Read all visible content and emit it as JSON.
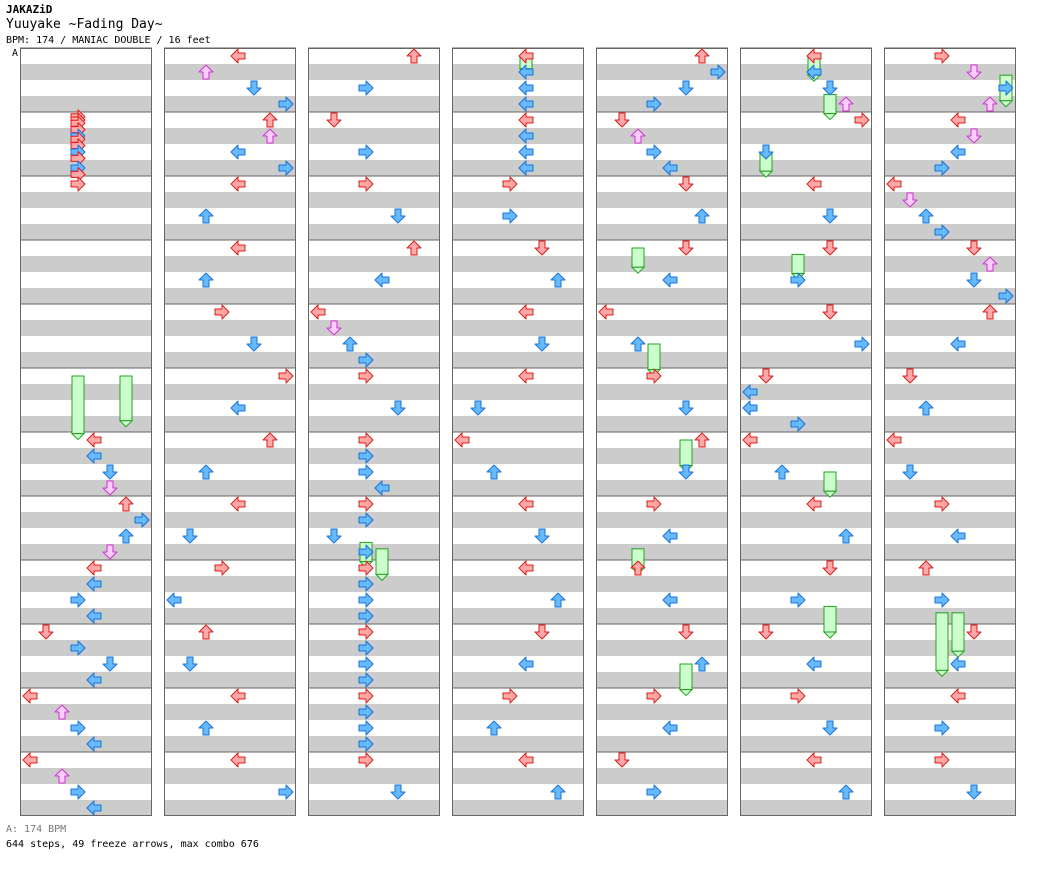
{
  "header": {
    "artist": "JAKAZiD",
    "title": "Yuuyake ~Fading Day~",
    "info": "BPM: 174 / MANIAC DOUBLE / 16 feet",
    "section_marker": "A"
  },
  "footer": {
    "bpm_line": "A: 174 BPM",
    "stats": "644 steps, 49 freeze arrows, max combo 676"
  },
  "colors": {
    "red_fill": "#ffaaaa",
    "red_stroke": "#e01818",
    "blue_fill": "#66bbff",
    "blue_stroke": "#1870d8",
    "pink_fill": "#ffccff",
    "pink_stroke": "#cc33cc",
    "freeze_fill": "#ccffcc",
    "freeze_stroke": "#20a020",
    "stripe": "#cccccc",
    "grid": "#666666"
  },
  "chart_data": {
    "type": "step-chart",
    "mode": "MANIAC DOUBLE",
    "bpm": 174,
    "panels": 16,
    "columns": 7,
    "measures_per_column": 12,
    "lanes": [
      "P1-left",
      "P1-down",
      "P1-up",
      "P1-right",
      "P2-left",
      "P2-down",
      "P2-up",
      "P2-right"
    ],
    "notes": [
      [
        [
          0,
          0.95,
          3
        ],
        [
          0,
          1.0,
          3
        ],
        [
          0,
          1.05,
          3
        ],
        [
          0,
          1.15,
          3
        ],
        [
          0,
          1.25,
          3
        ],
        [
          0,
          1.3,
          3
        ],
        [
          0,
          1.4,
          3
        ],
        [
          0,
          1.5,
          3
        ],
        [
          0,
          1.6,
          3
        ],
        [
          0,
          1.75,
          3
        ],
        [
          0,
          1.85,
          3
        ],
        [
          0,
          2.0,
          3
        ],
        [
          0,
          6.0,
          4
        ],
        [
          0,
          6.25,
          4
        ],
        [
          0,
          6.5,
          5
        ],
        [
          0,
          6.75,
          5
        ],
        [
          0,
          7.0,
          6
        ],
        [
          0,
          7.25,
          7
        ],
        [
          0,
          7.5,
          6
        ],
        [
          0,
          7.75,
          5
        ],
        [
          0,
          8.0,
          4
        ],
        [
          0,
          8.25,
          4
        ],
        [
          0,
          8.5,
          3
        ],
        [
          0,
          8.75,
          4
        ],
        [
          0,
          9.0,
          1
        ],
        [
          0,
          9.25,
          3
        ],
        [
          0,
          9.5,
          5
        ],
        [
          0,
          9.75,
          4
        ],
        [
          0,
          10.0,
          0
        ],
        [
          0,
          10.25,
          2
        ],
        [
          0,
          10.5,
          3
        ],
        [
          0,
          10.75,
          4
        ],
        [
          0,
          11.0,
          0
        ],
        [
          0,
          11.25,
          2
        ],
        [
          0,
          11.5,
          3
        ],
        [
          0,
          11.75,
          4
        ]
      ],
      [
        [
          1,
          0.0,
          4
        ],
        [
          1,
          0.25,
          2
        ],
        [
          1,
          0.5,
          5
        ],
        [
          1,
          0.75,
          7
        ],
        [
          1,
          1.0,
          6
        ],
        [
          1,
          1.25,
          6
        ],
        [
          1,
          1.5,
          4
        ],
        [
          1,
          1.75,
          7
        ],
        [
          1,
          2.0,
          4
        ],
        [
          1,
          2.5,
          2
        ],
        [
          1,
          3.0,
          4
        ],
        [
          1,
          3.5,
          2
        ],
        [
          1,
          4.0,
          3
        ],
        [
          1,
          4.5,
          5
        ],
        [
          1,
          5.0,
          7
        ],
        [
          1,
          5.5,
          4
        ],
        [
          1,
          6.0,
          6
        ],
        [
          1,
          6.5,
          2
        ],
        [
          1,
          7.0,
          4
        ],
        [
          1,
          7.5,
          1
        ],
        [
          1,
          8.0,
          3
        ],
        [
          1,
          8.5,
          0
        ],
        [
          1,
          9.0,
          2
        ],
        [
          1,
          9.5,
          1
        ],
        [
          1,
          10.0,
          4
        ],
        [
          1,
          10.5,
          2
        ],
        [
          1,
          11.0,
          4
        ],
        [
          1,
          11.5,
          7
        ]
      ],
      [
        [
          2,
          0.0,
          6
        ],
        [
          2,
          0.5,
          3
        ],
        [
          2,
          1.0,
          1
        ],
        [
          2,
          1.5,
          3
        ],
        [
          2,
          2.0,
          3
        ],
        [
          2,
          2.5,
          5
        ],
        [
          2,
          3.0,
          6
        ],
        [
          2,
          3.5,
          4
        ],
        [
          2,
          4.0,
          0
        ],
        [
          2,
          4.25,
          1
        ],
        [
          2,
          4.5,
          2
        ],
        [
          2,
          4.75,
          3
        ],
        [
          2,
          5.0,
          3
        ],
        [
          2,
          5.5,
          5
        ],
        [
          2,
          6.0,
          3
        ],
        [
          2,
          6.25,
          3
        ],
        [
          2,
          6.5,
          3
        ],
        [
          2,
          6.75,
          4
        ],
        [
          2,
          7.0,
          3
        ],
        [
          2,
          7.25,
          3
        ],
        [
          2,
          7.5,
          1
        ],
        [
          2,
          7.75,
          3
        ],
        [
          2,
          8.0,
          3
        ],
        [
          2,
          8.25,
          3
        ],
        [
          2,
          8.5,
          3
        ],
        [
          2,
          8.75,
          3
        ],
        [
          2,
          9.0,
          3
        ],
        [
          2,
          9.25,
          3
        ],
        [
          2,
          9.5,
          3
        ],
        [
          2,
          9.75,
          3
        ],
        [
          2,
          10.0,
          3
        ],
        [
          2,
          10.25,
          3
        ],
        [
          2,
          10.5,
          3
        ],
        [
          2,
          10.75,
          3
        ],
        [
          2,
          11.0,
          3
        ],
        [
          2,
          11.5,
          5
        ]
      ],
      [
        [
          3,
          0.0,
          4
        ],
        [
          3,
          0.25,
          4
        ],
        [
          3,
          0.5,
          4
        ],
        [
          3,
          0.75,
          4
        ],
        [
          3,
          1.0,
          4
        ],
        [
          3,
          1.25,
          4
        ],
        [
          3,
          1.5,
          4
        ],
        [
          3,
          1.75,
          4
        ],
        [
          3,
          2.0,
          3
        ],
        [
          3,
          2.5,
          3
        ],
        [
          3,
          3.0,
          5
        ],
        [
          3,
          3.5,
          6
        ],
        [
          3,
          4.0,
          4
        ],
        [
          3,
          4.5,
          5
        ],
        [
          3,
          5.0,
          4
        ],
        [
          3,
          5.5,
          1
        ],
        [
          3,
          6.0,
          0
        ],
        [
          3,
          6.5,
          2
        ],
        [
          3,
          7.0,
          4
        ],
        [
          3,
          7.5,
          5
        ],
        [
          3,
          8.0,
          4
        ],
        [
          3,
          8.5,
          6
        ],
        [
          3,
          9.0,
          5
        ],
        [
          3,
          9.5,
          4
        ],
        [
          3,
          10.0,
          3
        ],
        [
          3,
          10.5,
          2
        ],
        [
          3,
          11.0,
          4
        ],
        [
          3,
          11.5,
          6
        ]
      ],
      [
        [
          4,
          0.0,
          6
        ],
        [
          4,
          0.25,
          7
        ],
        [
          4,
          0.5,
          5
        ],
        [
          4,
          0.75,
          3
        ],
        [
          4,
          1.0,
          1
        ],
        [
          4,
          1.25,
          2
        ],
        [
          4,
          1.5,
          3
        ],
        [
          4,
          1.75,
          4
        ],
        [
          4,
          2.0,
          5
        ],
        [
          4,
          2.5,
          6
        ],
        [
          4,
          3.0,
          5
        ],
        [
          4,
          3.5,
          4
        ],
        [
          4,
          4.0,
          0
        ],
        [
          4,
          4.5,
          2
        ],
        [
          4,
          5.0,
          3
        ],
        [
          4,
          5.5,
          5
        ],
        [
          4,
          6.0,
          6
        ],
        [
          4,
          6.5,
          5
        ],
        [
          4,
          7.0,
          3
        ],
        [
          4,
          7.5,
          4
        ],
        [
          4,
          8.0,
          2
        ],
        [
          4,
          8.5,
          4
        ],
        [
          4,
          9.0,
          5
        ],
        [
          4,
          9.5,
          6
        ],
        [
          4,
          10.0,
          3
        ],
        [
          4,
          10.5,
          4
        ],
        [
          4,
          11.0,
          1
        ],
        [
          4,
          11.5,
          3
        ]
      ],
      [
        [
          5,
          0.0,
          4
        ],
        [
          5,
          0.25,
          4
        ],
        [
          5,
          0.5,
          5
        ],
        [
          5,
          0.75,
          6
        ],
        [
          5,
          1.0,
          7
        ],
        [
          5,
          1.5,
          1
        ],
        [
          5,
          2.0,
          4
        ],
        [
          5,
          2.5,
          5
        ],
        [
          5,
          3.0,
          5
        ],
        [
          5,
          3.5,
          3
        ],
        [
          5,
          4.0,
          5
        ],
        [
          5,
          4.5,
          7
        ],
        [
          5,
          5.0,
          1
        ],
        [
          5,
          5.25,
          0
        ],
        [
          5,
          5.5,
          0
        ],
        [
          5,
          5.75,
          3
        ],
        [
          5,
          6.0,
          0
        ],
        [
          5,
          6.5,
          2
        ],
        [
          5,
          7.0,
          4
        ],
        [
          5,
          7.5,
          6
        ],
        [
          5,
          8.0,
          5
        ],
        [
          5,
          8.5,
          3
        ],
        [
          5,
          9.0,
          1
        ],
        [
          5,
          9.5,
          4
        ],
        [
          5,
          10.0,
          3
        ],
        [
          5,
          10.5,
          5
        ],
        [
          5,
          11.0,
          4
        ],
        [
          5,
          11.5,
          6
        ]
      ],
      [
        [
          6,
          0.0,
          3
        ],
        [
          6,
          0.25,
          5
        ],
        [
          6,
          0.5,
          7
        ],
        [
          6,
          0.75,
          6
        ],
        [
          6,
          1.0,
          4
        ],
        [
          6,
          1.25,
          5
        ],
        [
          6,
          1.5,
          4
        ],
        [
          6,
          1.75,
          3
        ],
        [
          6,
          2.0,
          0
        ],
        [
          6,
          2.25,
          1
        ],
        [
          6,
          2.5,
          2
        ],
        [
          6,
          2.75,
          3
        ],
        [
          6,
          3.0,
          5
        ],
        [
          6,
          3.25,
          6
        ],
        [
          6,
          3.5,
          5
        ],
        [
          6,
          3.75,
          7
        ],
        [
          6,
          4.0,
          6
        ],
        [
          6,
          4.5,
          4
        ],
        [
          6,
          5.0,
          1
        ],
        [
          6,
          5.5,
          2
        ],
        [
          6,
          6.0,
          0
        ],
        [
          6,
          6.5,
          1
        ],
        [
          6,
          7.0,
          3
        ],
        [
          6,
          7.5,
          4
        ],
        [
          6,
          8.0,
          2
        ],
        [
          6,
          8.5,
          3
        ],
        [
          6,
          9.0,
          5
        ],
        [
          6,
          9.5,
          4
        ],
        [
          6,
          10.0,
          4
        ],
        [
          6,
          10.5,
          3
        ],
        [
          6,
          11.0,
          3
        ],
        [
          6,
          11.5,
          5
        ]
      ]
    ],
    "freezes": [
      [
        0,
        5.0,
        5.9,
        3
      ],
      [
        0,
        5.0,
        5.7,
        6
      ],
      [
        2,
        7.6,
        7.9,
        3
      ],
      [
        2,
        7.7,
        8.1,
        4
      ],
      [
        3,
        0.0,
        0.2,
        4
      ],
      [
        4,
        3.0,
        3.3,
        2
      ],
      [
        4,
        4.5,
        4.9,
        3
      ],
      [
        4,
        6.0,
        6.4,
        5
      ],
      [
        4,
        7.7,
        8.0,
        2
      ],
      [
        4,
        9.5,
        9.9,
        5
      ],
      [
        5,
        0.0,
        0.3,
        4
      ],
      [
        5,
        0.6,
        0.9,
        5
      ],
      [
        5,
        1.5,
        1.8,
        1
      ],
      [
        5,
        3.1,
        3.4,
        3
      ],
      [
        5,
        6.5,
        6.8,
        5
      ],
      [
        5,
        8.6,
        9.0,
        5
      ],
      [
        6,
        0.3,
        0.7,
        7
      ],
      [
        6,
        8.7,
        9.6,
        3
      ],
      [
        6,
        8.7,
        9.3,
        4
      ]
    ]
  }
}
